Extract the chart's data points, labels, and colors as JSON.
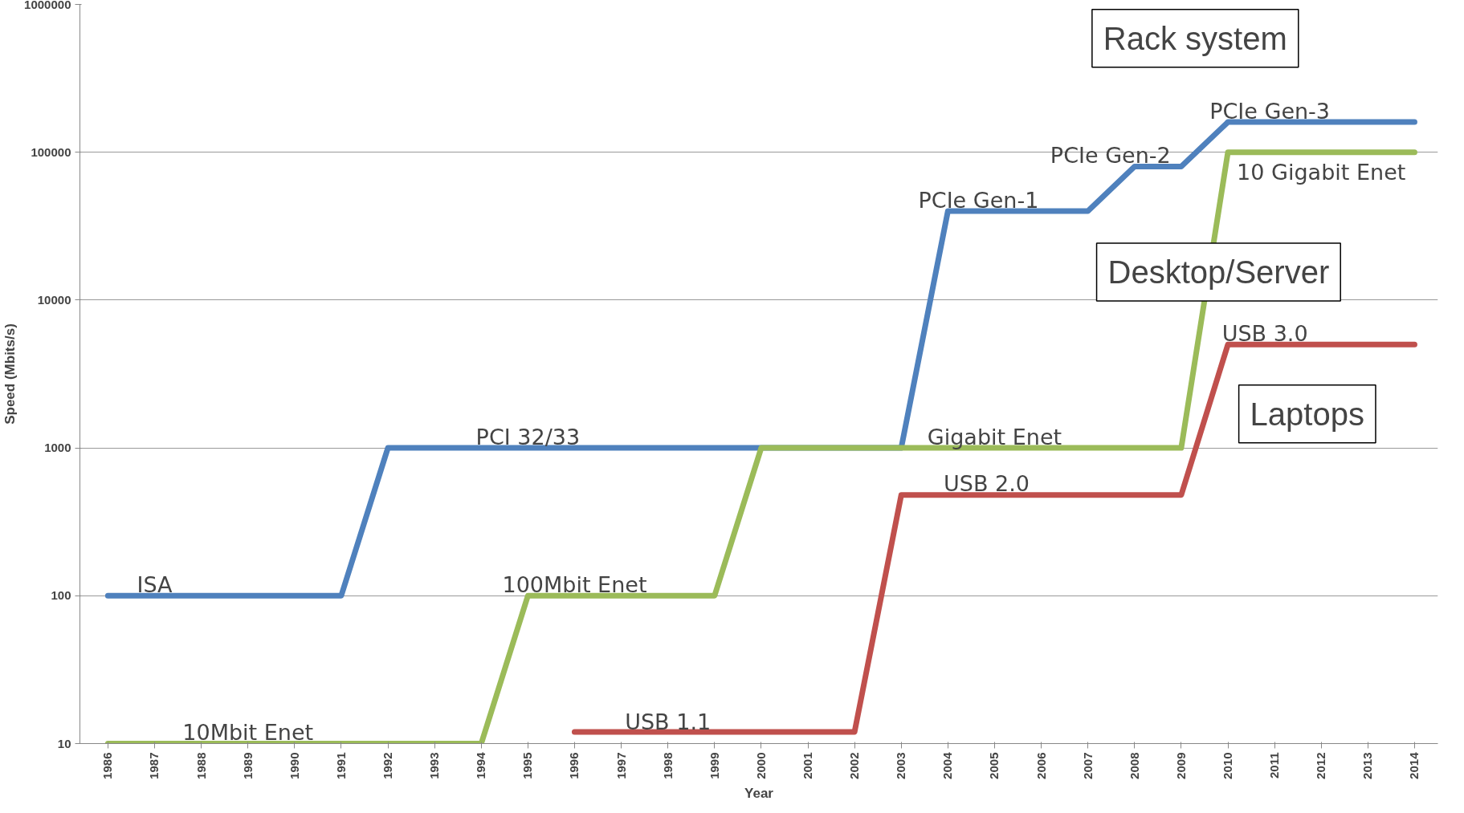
{
  "chart_data": {
    "type": "line",
    "xlabel": "Year",
    "ylabel": "Speed (Mbits/s)",
    "categories": [
      "1986",
      "1987",
      "1988",
      "1989",
      "1990",
      "1991",
      "1992",
      "1993",
      "1994",
      "1995",
      "1996",
      "1997",
      "1998",
      "1999",
      "2000",
      "2001",
      "2002",
      "2003",
      "2004",
      "2005",
      "2006",
      "2007",
      "2008",
      "2009",
      "2010",
      "2011",
      "2012",
      "2013",
      "2014"
    ],
    "series": [
      {
        "color": "#4f81bd",
        "values": [
          100,
          100,
          100,
          100,
          100,
          100,
          1000,
          1000,
          1000,
          1000,
          1000,
          1000,
          1000,
          1000,
          1000,
          1000,
          1000,
          1000,
          40000,
          40000,
          40000,
          40000,
          80000,
          80000,
          160000,
          160000,
          160000,
          160000,
          160000
        ]
      },
      {
        "color": "#9bbb59",
        "values": [
          10,
          10,
          10,
          10,
          10,
          10,
          10,
          10,
          10,
          100,
          100,
          100,
          100,
          100,
          1000,
          1000,
          1000,
          1000,
          1000,
          1000,
          1000,
          1000,
          1000,
          1000,
          100000,
          100000,
          100000,
          100000,
          100000
        ]
      },
      {
        "color": "#c0504d",
        "values": [
          null,
          null,
          null,
          null,
          null,
          null,
          null,
          null,
          null,
          null,
          12,
          12,
          12,
          12,
          12,
          12,
          12,
          480,
          480,
          480,
          480,
          480,
          480,
          480,
          5000,
          5000,
          5000,
          5000,
          5000
        ]
      }
    ],
    "log": "y",
    "ylim": [
      10,
      1000000
    ],
    "yticks": [
      10,
      100,
      1000,
      10000,
      100000,
      1000000
    ],
    "grid": "y",
    "annotations": [
      "Rack system",
      "Desktop/Server",
      "Laptops",
      {
        "text": "ISA",
        "x": "1987",
        "y": 100
      },
      {
        "text": "10Mbit Enet",
        "x": "1989",
        "y": 10
      },
      {
        "text": "PCI 32/33",
        "x": "1995",
        "y": 1000
      },
      {
        "text": "100Mbit Enet",
        "x": "1996",
        "y": 100
      },
      {
        "text": "USB 1.1",
        "x": "1998",
        "y": 12
      },
      {
        "text": "Gigabit Enet",
        "x": "2005",
        "y": 1000
      },
      {
        "text": "USB 2.0",
        "x": "2005",
        "y": 480
      },
      {
        "text": "PCIe Gen-1",
        "x": "2005",
        "y": 40000
      },
      {
        "text": "PCIe Gen-2",
        "x": "2008",
        "y": 80000
      },
      {
        "text": "PCIe Gen-3",
        "x": "2011",
        "y": 160000
      },
      {
        "text": "10 Gigabit Enet",
        "x": "2012",
        "y": 100000
      },
      {
        "text": "USB 3.0",
        "x": "2011",
        "y": 5000
      }
    ]
  }
}
